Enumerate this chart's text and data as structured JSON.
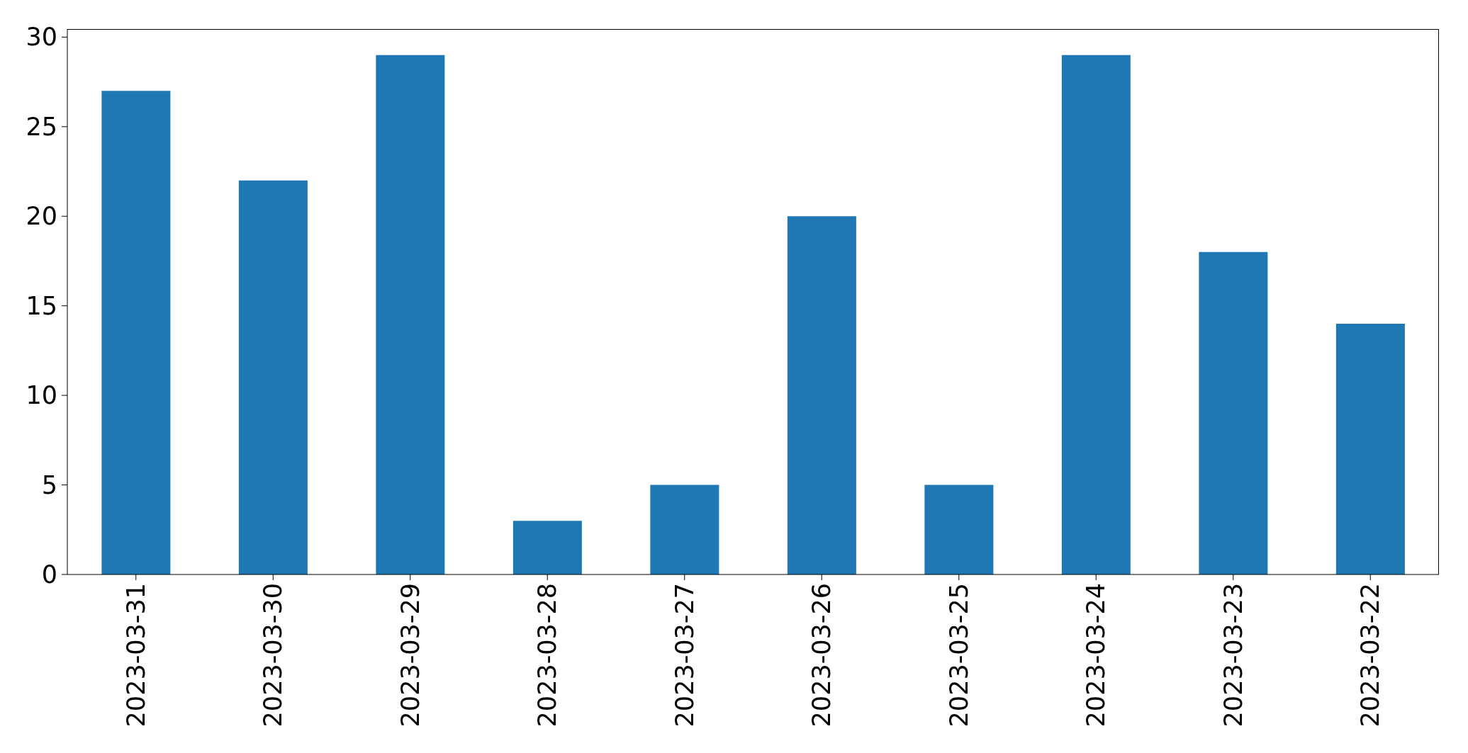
{
  "chart_data": {
    "type": "bar",
    "categories": [
      "2023-03-31",
      "2023-03-30",
      "2023-03-29",
      "2023-03-28",
      "2023-03-27",
      "2023-03-26",
      "2023-03-25",
      "2023-03-24",
      "2023-03-23",
      "2023-03-22"
    ],
    "values": [
      27,
      22,
      29,
      3,
      5,
      20,
      5,
      29,
      18,
      14
    ],
    "color": "#1f77b4",
    "ylim": [
      0,
      30.45
    ],
    "yticks": [
      0,
      5,
      10,
      15,
      20,
      25,
      30
    ]
  }
}
